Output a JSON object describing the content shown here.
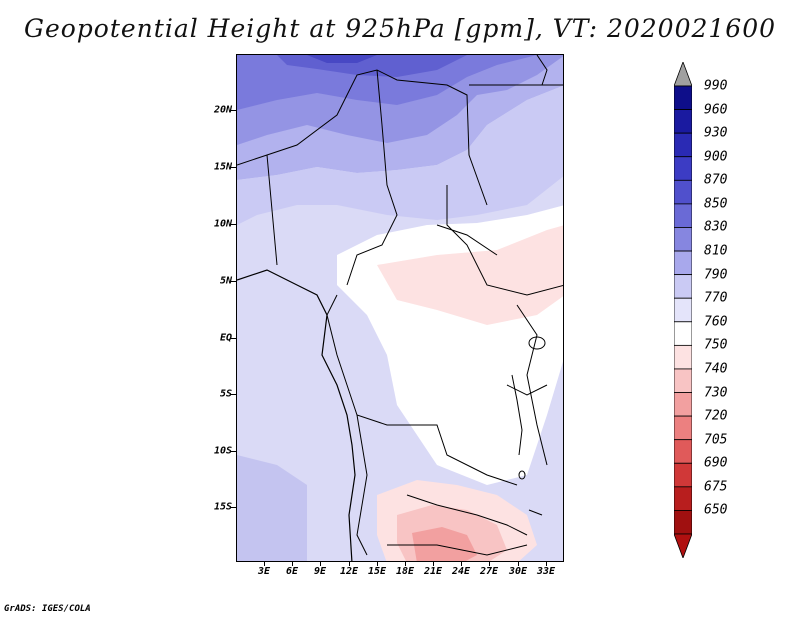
{
  "title": "Geopotential Height at 925hPa [gpm], VT: 2020021600",
  "credit": "GrADS: IGES/COLA",
  "map": {
    "lat_ticks": [
      "20N",
      "15N",
      "10N",
      "5N",
      "EQ",
      "5S",
      "10S",
      "15S"
    ],
    "lon_ticks": [
      "3E",
      "6E",
      "9E",
      "12E",
      "15E",
      "18E",
      "21E",
      "24E",
      "27E",
      "30E",
      "33E"
    ],
    "extent": {
      "lon_min": 0,
      "lon_max": 35,
      "lat_min": -20,
      "lat_max": 25
    }
  },
  "colorbar": {
    "labels": [
      "990",
      "960",
      "930",
      "900",
      "870",
      "850",
      "830",
      "810",
      "790",
      "770",
      "760",
      "750",
      "740",
      "730",
      "720",
      "705",
      "690",
      "675",
      "650"
    ],
    "colors": [
      "#a0a0a0",
      "#0e0e8a",
      "#1a1aa0",
      "#2a2ab4",
      "#3c3cc4",
      "#5050cc",
      "#6a6ad6",
      "#8686e0",
      "#a8a8ec",
      "#cacaf4",
      "#e4e4fa",
      "#ffffff",
      "#fde2e2",
      "#f8c4c4",
      "#f2a0a0",
      "#ec8080",
      "#e05a5a",
      "#d03838",
      "#b81e1e",
      "#a01010",
      "#b01010"
    ]
  }
}
